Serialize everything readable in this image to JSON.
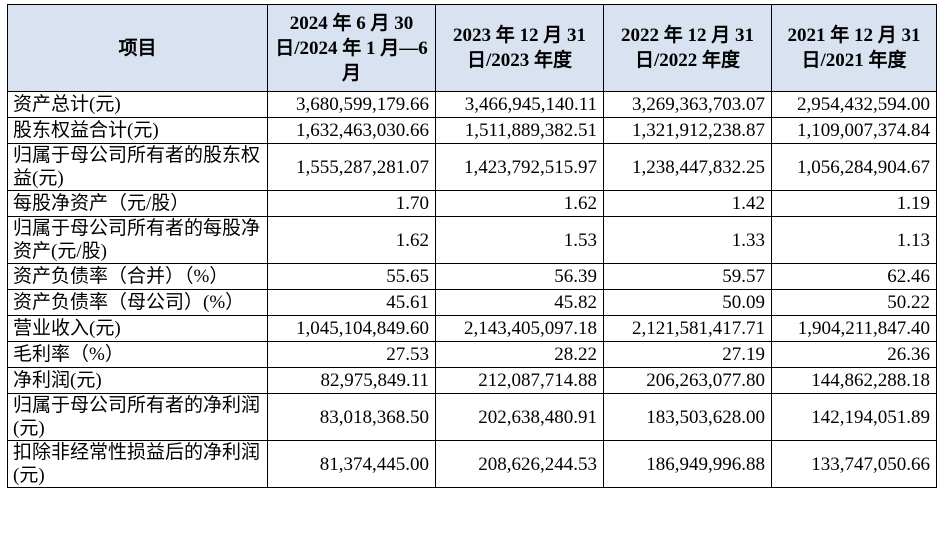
{
  "table": {
    "header": {
      "item": "项目",
      "col1": "2024 年 6 月 30 日/2024 年 1 月—6 月",
      "col2": "2023 年 12 月 31 日/2023 年度",
      "col3": "2022 年 12 月 31 日/2022 年度",
      "col4": "2021 年 12 月 31 日/2021 年度"
    },
    "rows": [
      {
        "label": "资产总计(元)",
        "values": [
          "3,680,599,179.66",
          "3,466,945,140.11",
          "3,269,363,703.07",
          "2,954,432,594.00"
        ]
      },
      {
        "label": "股东权益合计(元)",
        "values": [
          "1,632,463,030.66",
          "1,511,889,382.51",
          "1,321,912,238.87",
          "1,109,007,374.84"
        ]
      },
      {
        "label": "归属于母公司所有者的股东权益(元)",
        "values": [
          "1,555,287,281.07",
          "1,423,792,515.97",
          "1,238,447,832.25",
          "1,056,284,904.67"
        ]
      },
      {
        "label": "每股净资产（元/股）",
        "values": [
          "1.70",
          "1.62",
          "1.42",
          "1.19"
        ]
      },
      {
        "label": "归属于母公司所有者的每股净资产(元/股)",
        "values": [
          "1.62",
          "1.53",
          "1.33",
          "1.13"
        ]
      },
      {
        "label": "资产负债率（合并）（%）",
        "values": [
          "55.65",
          "56.39",
          "59.57",
          "62.46"
        ]
      },
      {
        "label": "资产负债率（母公司）(%）",
        "values": [
          "45.61",
          "45.82",
          "50.09",
          "50.22"
        ]
      },
      {
        "label": "营业收入(元)",
        "values": [
          "1,045,104,849.60",
          "2,143,405,097.18",
          "2,121,581,417.71",
          "1,904,211,847.40"
        ]
      },
      {
        "label": "毛利率（%）",
        "values": [
          "27.53",
          "28.22",
          "27.19",
          "26.36"
        ]
      },
      {
        "label": "净利润(元)",
        "values": [
          "82,975,849.11",
          "212,087,714.88",
          "206,263,077.80",
          "144,862,288.18"
        ]
      },
      {
        "label": "归属于母公司所有者的净利润(元)",
        "values": [
          "83,018,368.50",
          "202,638,480.91",
          "183,503,628.00",
          "142,194,051.89"
        ]
      },
      {
        "label": "扣除非经常性损益后的净利润(元)",
        "values": [
          "81,374,445.00",
          "208,626,244.53",
          "186,949,996.88",
          "133,747,050.66"
        ]
      }
    ]
  }
}
